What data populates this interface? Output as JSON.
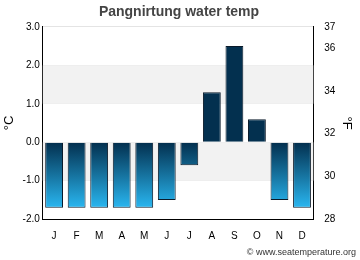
{
  "chart_data": {
    "type": "bar",
    "title": "Pangnirtung water temp",
    "categories": [
      "J",
      "F",
      "M",
      "A",
      "M",
      "J",
      "J",
      "A",
      "S",
      "O",
      "N",
      "D"
    ],
    "values": [
      -1.7,
      -1.7,
      -1.7,
      -1.7,
      -1.7,
      -1.5,
      -0.6,
      1.3,
      2.5,
      0.6,
      -1.5,
      -1.7
    ],
    "color": "#29b6f0",
    "y_label": "°C",
    "ylim": [
      -2,
      3
    ],
    "yticks": [
      {
        "value": -2,
        "label": "-2.0"
      },
      {
        "value": -1,
        "label": "-1.0"
      },
      {
        "value": 0,
        "label": "0.0"
      },
      {
        "value": 1,
        "label": "1.0"
      },
      {
        "value": 2,
        "label": "2.0"
      },
      {
        "value": 3,
        "label": "3.0"
      }
    ],
    "y2_label": "°F",
    "y2lim": [
      28,
      37
    ],
    "y2ticks": [
      28,
      30,
      32,
      34,
      36,
      37
    ],
    "grid": true,
    "annotation": "© www.seatemperature.org"
  }
}
